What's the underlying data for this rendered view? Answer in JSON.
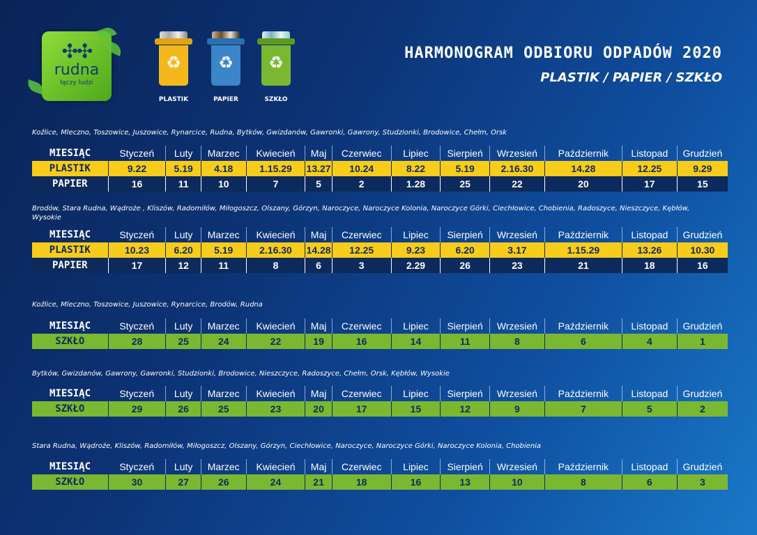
{
  "logo": {
    "name": "rudna",
    "tagline": "łączy ludzi"
  },
  "bins": [
    {
      "label": "PLASTIK",
      "color": "#f5b81c"
    },
    {
      "label": "PAPIER",
      "color": "#3a86c8"
    },
    {
      "label": "SZKŁO",
      "color": "#7ab832"
    }
  ],
  "header": {
    "title": "HARMONOGRAM ODBIORU ODPADÓW 2020",
    "subtitle": "PLASTIK / PAPIER / SZKŁO"
  },
  "months_label": "MIESIĄC",
  "months": [
    "Styczeń",
    "Luty",
    "Marzec",
    "Kwiecień",
    "Maj",
    "Czerwiec",
    "Lipiec",
    "Sierpień",
    "Wrzesień",
    "Październik",
    "Listopad",
    "Grudzień"
  ],
  "sections": [
    {
      "area": "Koźlice, Mleczno, Toszowice, Juszowice, Rynarcice, Rudna, Bytków, Gwizdanów, Gawronki, Gawrony, Studzionki, Brodowice, Chełm, Orsk",
      "rows": [
        {
          "label": "PLASTIK",
          "type": "plastik",
          "values": [
            "9.22",
            "5.19",
            "4.18",
            "1.15.29",
            "13.27",
            "10.24",
            "8.22",
            "5.19",
            "2.16.30",
            "14.28",
            "12.25",
            "9.29"
          ]
        },
        {
          "label": "PAPIER",
          "type": "papier",
          "values": [
            "16",
            "11",
            "10",
            "7",
            "5",
            "2",
            "1.28",
            "25",
            "22",
            "20",
            "17",
            "15"
          ]
        }
      ]
    },
    {
      "area": "Brodów, Stara Rudna, Wądroże , Kliszów, Radomiłów, Miłogoszcz, Olszany, Górzyn, Naroczyce, Naroczyce Kolonia, Naroczyce Górki, Ciechłowice, Chobienia, Radoszyce, Nieszczyce, Kębłów, Wysokie",
      "rows": [
        {
          "label": "PLASTIK",
          "type": "plastik",
          "values": [
            "10.23",
            "6.20",
            "5.19",
            "2.16.30",
            "14.28",
            "12.25",
            "9.23",
            "6.20",
            "3.17",
            "1.15.29",
            "13.26",
            "10.30"
          ]
        },
        {
          "label": "PAPIER",
          "type": "papier",
          "values": [
            "17",
            "12",
            "11",
            "8",
            "6",
            "3",
            "2.29",
            "26",
            "23",
            "21",
            "18",
            "16"
          ]
        }
      ]
    },
    {
      "area": "Koźlice, Mleczno, Toszowice, Juszowice, Rynarcice, Brodów, Rudna",
      "rows": [
        {
          "label": "SZKŁO",
          "type": "szklo",
          "values": [
            "28",
            "25",
            "24",
            "22",
            "19",
            "16",
            "14",
            "11",
            "8",
            "6",
            "4",
            "1"
          ]
        }
      ]
    },
    {
      "area": "Bytków, Gwizdanów, Gawrony, Gawronki, Studzionki, Brodowice, Nieszczyce, Radoszyce, Chełm, Orsk, Kębłów, Wysokie",
      "rows": [
        {
          "label": "SZKŁO",
          "type": "szklo",
          "values": [
            "29",
            "26",
            "25",
            "23",
            "20",
            "17",
            "15",
            "12",
            "9",
            "7",
            "5",
            "2"
          ]
        }
      ]
    },
    {
      "area": "Stara Rudna, Wądroże, Kliszów, Radomiłów, Miłogoszcz, Olszany, Górzyn, Ciechłowice, Naroczyce, Naroczyce Górki, Naroczyce Kolonia, Chobienia",
      "rows": [
        {
          "label": "SZKŁO",
          "type": "szklo",
          "values": [
            "30",
            "27",
            "26",
            "24",
            "21",
            "18",
            "16",
            "13",
            "10",
            "8",
            "6",
            "3"
          ]
        }
      ]
    }
  ]
}
